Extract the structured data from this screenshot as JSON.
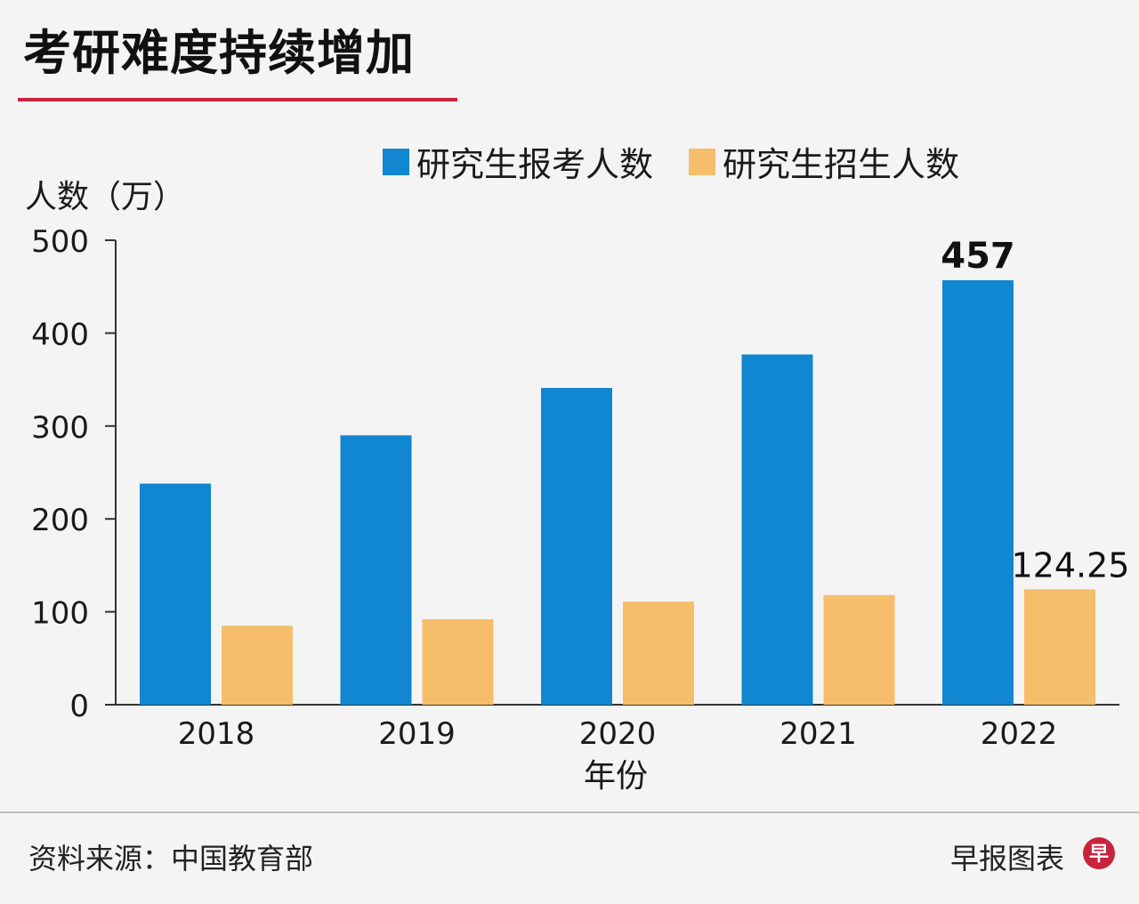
{
  "title": "考研难度持续增加",
  "unit_label": "人数（万）",
  "source": "资料来源：中国教育部",
  "credit": "早报图表",
  "logo_text": "早",
  "colors": {
    "applicants": "#1187d1",
    "admitted": "#f6be6b",
    "title_rule": "#c8243c"
  },
  "chart_data": {
    "type": "bar",
    "title": "考研难度持续增加",
    "xlabel": "年份",
    "ylabel": "人数（万）",
    "categories": [
      "2018",
      "2019",
      "2020",
      "2021",
      "2022"
    ],
    "ylim": [
      0,
      500
    ],
    "yticks": [
      "0",
      "100",
      "200",
      "300",
      "400",
      "500"
    ],
    "series": [
      {
        "name": "研究生报考人数",
        "values": [
          238,
          290,
          341,
          377,
          457
        ]
      },
      {
        "name": "研究生招生人数",
        "values": [
          85,
          92,
          111,
          118,
          124.25
        ]
      }
    ],
    "annotations": [
      {
        "series": 0,
        "index": 4,
        "text": "457"
      },
      {
        "series": 1,
        "index": 4,
        "text": "124.25"
      }
    ],
    "legend": "top"
  }
}
